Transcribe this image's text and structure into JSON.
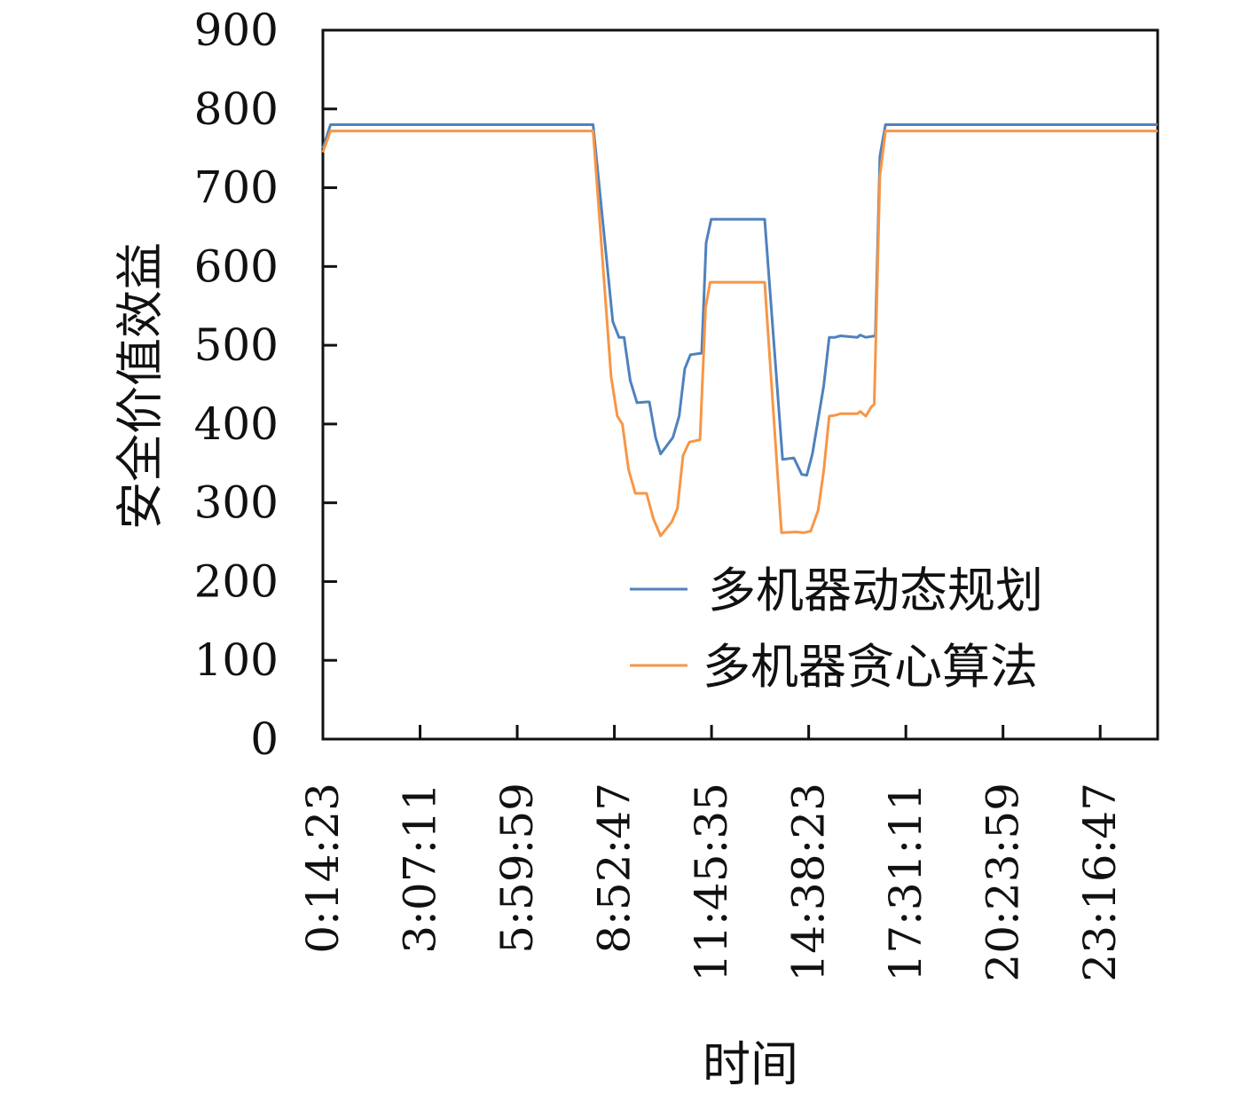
{
  "chart_data": {
    "type": "line",
    "xlabel": "时间",
    "ylabel": "安全价值效益",
    "ylim": [
      0,
      900
    ],
    "yticks": [
      0,
      100,
      200,
      300,
      400,
      500,
      600,
      700,
      800,
      900
    ],
    "xlim": [
      "0:14:23",
      "24:59:00"
    ],
    "xticks": [
      "0:14:23",
      "3:07:11",
      "5:59:59",
      "8:52:47",
      "11:45:35",
      "14:38:23",
      "17:31:11",
      "20:23:59",
      "23:16:47"
    ],
    "grid": false,
    "legend_position": "bottom-right",
    "series": [
      {
        "name": "多机器动态规划",
        "color": "#4f81bd",
        "points": [
          [
            "0:14:23",
            750
          ],
          [
            "0:28:00",
            780
          ],
          [
            "8:15:00",
            780
          ],
          [
            "8:50:00",
            530
          ],
          [
            "9:01:00",
            510
          ],
          [
            "9:10:00",
            510
          ],
          [
            "9:21:00",
            455
          ],
          [
            "9:33:00",
            427
          ],
          [
            "9:50:00",
            428
          ],
          [
            "9:55:00",
            428
          ],
          [
            "10:06:00",
            383
          ],
          [
            "10:15:00",
            362
          ],
          [
            "10:37:00",
            383
          ],
          [
            "10:48:00",
            410
          ],
          [
            "10:58:00",
            470
          ],
          [
            "11:08:00",
            488
          ],
          [
            "11:28:00",
            490
          ],
          [
            "11:36:00",
            630
          ],
          [
            "11:45:00",
            660
          ],
          [
            "13:20:00",
            660
          ],
          [
            "13:52:00",
            355
          ],
          [
            "14:12:00",
            357
          ],
          [
            "14:26:00",
            336
          ],
          [
            "14:35:00",
            335
          ],
          [
            "14:45:00",
            362
          ],
          [
            "15:05:00",
            448
          ],
          [
            "15:15:00",
            510
          ],
          [
            "15:25:00",
            510
          ],
          [
            "15:35:00",
            512
          ],
          [
            "16:05:00",
            510
          ],
          [
            "16:10:00",
            513
          ],
          [
            "16:20:00",
            510
          ],
          [
            "16:37:00",
            512
          ],
          [
            "16:45:00",
            740
          ],
          [
            "16:55:00",
            780
          ],
          [
            "24:59:00",
            780
          ]
        ]
      },
      {
        "name": "多机器贪心算法",
        "color": "#f79646",
        "points": [
          [
            "0:14:23",
            745
          ],
          [
            "0:28:00",
            772
          ],
          [
            "8:15:00",
            772
          ],
          [
            "8:47:00",
            460
          ],
          [
            "8:58:00",
            410
          ],
          [
            "9:07:00",
            400
          ],
          [
            "9:18:00",
            342
          ],
          [
            "9:30:00",
            312
          ],
          [
            "9:50:00",
            312
          ],
          [
            "10:02:00",
            280
          ],
          [
            "10:15:00",
            258
          ],
          [
            "10:35:00",
            276
          ],
          [
            "10:45:00",
            293
          ],
          [
            "10:55:00",
            360
          ],
          [
            "11:06:00",
            377
          ],
          [
            "11:25:00",
            380
          ],
          [
            "11:35:00",
            548
          ],
          [
            "11:43:00",
            580
          ],
          [
            "13:20:00",
            580
          ],
          [
            "13:50:00",
            262
          ],
          [
            "14:15:00",
            263
          ],
          [
            "14:30:00",
            262
          ],
          [
            "14:42:00",
            264
          ],
          [
            "14:55:00",
            290
          ],
          [
            "15:05:00",
            340
          ],
          [
            "15:15:00",
            410
          ],
          [
            "15:25:00",
            411
          ],
          [
            "15:35:00",
            413
          ],
          [
            "16:05:00",
            413
          ],
          [
            "16:10:00",
            416
          ],
          [
            "16:20:00",
            410
          ],
          [
            "16:30:00",
            422
          ],
          [
            "16:35:00",
            425
          ],
          [
            "16:45:00",
            715
          ],
          [
            "16:55:00",
            772
          ],
          [
            "24:59:00",
            772
          ]
        ]
      }
    ]
  }
}
